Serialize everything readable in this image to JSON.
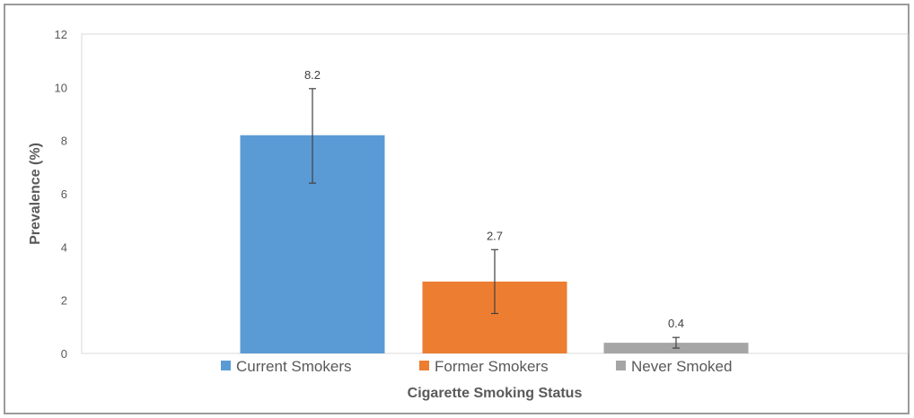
{
  "chart_data": {
    "type": "bar",
    "categories": [
      "Current Smokers",
      "Former Smokers",
      "Never Smoked"
    ],
    "values": [
      8.2,
      2.7,
      0.4
    ],
    "error_low": [
      6.4,
      1.5,
      0.2
    ],
    "error_high": [
      9.95,
      3.9,
      0.6
    ],
    "data_labels": [
      "8.2",
      "2.7",
      "0.4"
    ],
    "colors": [
      "#5b9bd5",
      "#ed7d31",
      "#a5a5a5"
    ],
    "xlabel": "Cigarette Smoking Status",
    "ylabel": "Prevalence (%)",
    "ylim": [
      0,
      12
    ],
    "yticks": [
      "0",
      "2",
      "4",
      "6",
      "8",
      "10",
      "12"
    ],
    "grid": false,
    "legend_position": "bottom"
  }
}
